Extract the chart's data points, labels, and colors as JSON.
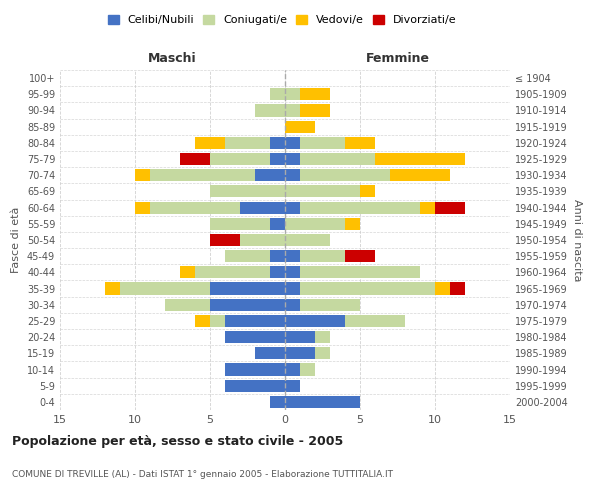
{
  "age_groups": [
    "0-4",
    "5-9",
    "10-14",
    "15-19",
    "20-24",
    "25-29",
    "30-34",
    "35-39",
    "40-44",
    "45-49",
    "50-54",
    "55-59",
    "60-64",
    "65-69",
    "70-74",
    "75-79",
    "80-84",
    "85-89",
    "90-94",
    "95-99",
    "100+"
  ],
  "birth_years": [
    "2000-2004",
    "1995-1999",
    "1990-1994",
    "1985-1989",
    "1980-1984",
    "1975-1979",
    "1970-1974",
    "1965-1969",
    "1960-1964",
    "1955-1959",
    "1950-1954",
    "1945-1949",
    "1940-1944",
    "1935-1939",
    "1930-1934",
    "1925-1929",
    "1920-1924",
    "1915-1919",
    "1910-1914",
    "1905-1909",
    "≤ 1904"
  ],
  "male_celibi": [
    1,
    4,
    4,
    2,
    4,
    4,
    5,
    5,
    1,
    1,
    0,
    1,
    3,
    0,
    2,
    1,
    1,
    0,
    0,
    0,
    0
  ],
  "male_coniugati": [
    0,
    0,
    0,
    0,
    0,
    1,
    3,
    6,
    5,
    3,
    3,
    4,
    6,
    5,
    7,
    4,
    3,
    0,
    2,
    1,
    0
  ],
  "male_vedovi": [
    0,
    0,
    0,
    0,
    0,
    1,
    0,
    1,
    1,
    0,
    0,
    0,
    1,
    0,
    1,
    0,
    2,
    0,
    0,
    0,
    0
  ],
  "male_divorziati": [
    0,
    0,
    0,
    0,
    0,
    0,
    0,
    0,
    0,
    0,
    2,
    0,
    0,
    0,
    0,
    2,
    0,
    0,
    0,
    0,
    0
  ],
  "female_celibi": [
    5,
    1,
    1,
    2,
    2,
    4,
    1,
    1,
    1,
    1,
    0,
    0,
    1,
    0,
    1,
    1,
    1,
    0,
    0,
    0,
    0
  ],
  "female_coniugati": [
    0,
    0,
    1,
    1,
    1,
    4,
    4,
    9,
    8,
    3,
    3,
    4,
    8,
    5,
    6,
    5,
    3,
    0,
    1,
    1,
    0
  ],
  "female_vedovi": [
    0,
    0,
    0,
    0,
    0,
    0,
    0,
    1,
    0,
    0,
    0,
    1,
    1,
    1,
    4,
    6,
    2,
    2,
    2,
    2,
    0
  ],
  "female_divorziati": [
    0,
    0,
    0,
    0,
    0,
    0,
    0,
    1,
    0,
    2,
    0,
    0,
    2,
    0,
    0,
    0,
    0,
    0,
    0,
    0,
    0
  ],
  "colors": {
    "celibi": "#4472c4",
    "coniugati": "#c5d9a0",
    "vedovi": "#ffc000",
    "divorziati": "#cc0000"
  },
  "xlim": 15,
  "title": "Popolazione per età, sesso e stato civile - 2005",
  "subtitle": "COMUNE DI TREVILLE (AL) - Dati ISTAT 1° gennaio 2005 - Elaborazione TUTTITALIA.IT",
  "xlabel_left": "Maschi",
  "xlabel_right": "Femmine",
  "ylabel": "Fasce di età",
  "ylabel_right": "Anni di nascita",
  "legend_labels": [
    "Celibi/Nubili",
    "Coniugati/e",
    "Vedovi/e",
    "Divorziati/e"
  ],
  "background_color": "#ffffff",
  "grid_color": "#cccccc"
}
